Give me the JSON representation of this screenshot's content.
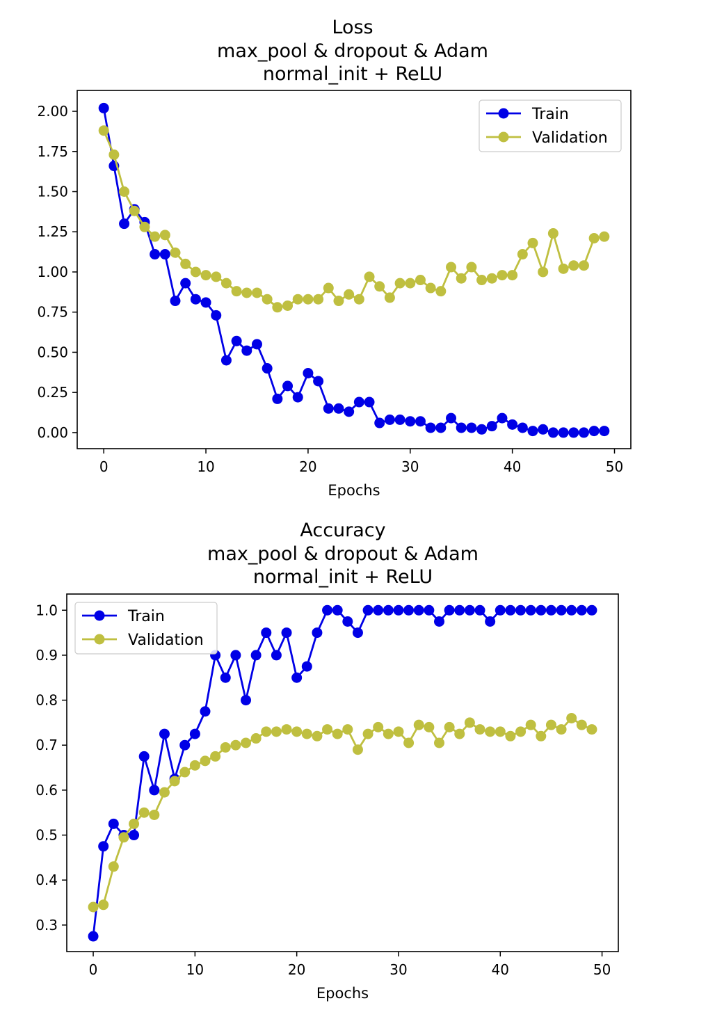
{
  "colors": {
    "train": "#0000e6",
    "validation": "#bfbf40",
    "axes": "#000000",
    "background": "#ffffff"
  },
  "chart_data": [
    {
      "type": "line",
      "title": "Loss",
      "subtitle_line1": "max_pool & dropout & Adam",
      "subtitle_line2": "normal_init + ReLU",
      "xlabel": "Epochs",
      "ylabel": "",
      "xlim": [
        -2.6,
        51.6
      ],
      "ylim": [
        -0.1,
        2.13
      ],
      "x_ticks": [
        0,
        10,
        20,
        30,
        40,
        50
      ],
      "x_tick_labels": [
        "0",
        "10",
        "20",
        "30",
        "40",
        "50"
      ],
      "y_ticks": [
        0.0,
        0.25,
        0.5,
        0.75,
        1.0,
        1.25,
        1.5,
        1.75,
        2.0
      ],
      "y_tick_labels": [
        "0.00",
        "0.25",
        "0.50",
        "0.75",
        "1.00",
        "1.25",
        "1.50",
        "1.75",
        "2.00"
      ],
      "legend_position": "top-right",
      "x": [
        0,
        1,
        2,
        3,
        4,
        5,
        6,
        7,
        8,
        9,
        10,
        11,
        12,
        13,
        14,
        15,
        16,
        17,
        18,
        19,
        20,
        21,
        22,
        23,
        24,
        25,
        26,
        27,
        28,
        29,
        30,
        31,
        32,
        33,
        34,
        35,
        36,
        37,
        38,
        39,
        40,
        41,
        42,
        43,
        44,
        45,
        46,
        47,
        48,
        49
      ],
      "series": [
        {
          "name": "Train",
          "color": "#0000e6",
          "values": [
            2.02,
            1.66,
            1.3,
            1.39,
            1.31,
            1.11,
            1.11,
            0.82,
            0.93,
            0.83,
            0.81,
            0.73,
            0.45,
            0.57,
            0.51,
            0.55,
            0.4,
            0.21,
            0.29,
            0.22,
            0.37,
            0.32,
            0.15,
            0.15,
            0.13,
            0.19,
            0.19,
            0.06,
            0.08,
            0.08,
            0.07,
            0.07,
            0.03,
            0.03,
            0.09,
            0.03,
            0.03,
            0.02,
            0.04,
            0.09,
            0.05,
            0.03,
            0.01,
            0.02,
            0.0,
            0.0,
            0.0,
            0.0,
            0.01,
            0.01
          ]
        },
        {
          "name": "Validation",
          "color": "#bfbf40",
          "values": [
            1.88,
            1.73,
            1.5,
            1.38,
            1.28,
            1.22,
            1.23,
            1.12,
            1.05,
            1.0,
            0.98,
            0.97,
            0.93,
            0.88,
            0.87,
            0.87,
            0.83,
            0.78,
            0.79,
            0.83,
            0.83,
            0.83,
            0.9,
            0.82,
            0.86,
            0.83,
            0.97,
            0.91,
            0.84,
            0.93,
            0.93,
            0.95,
            0.9,
            0.88,
            1.03,
            0.96,
            1.03,
            0.95,
            0.96,
            0.98,
            0.98,
            1.11,
            1.18,
            1.0,
            1.24,
            1.02,
            1.04,
            1.04,
            1.21,
            1.22
          ]
        }
      ]
    },
    {
      "type": "line",
      "title": "Accuracy",
      "subtitle_line1": "max_pool & dropout & Adam",
      "subtitle_line2": "normal_init + ReLU",
      "xlabel": "Epochs",
      "ylabel": "",
      "xlim": [
        -2.6,
        51.6
      ],
      "ylim": [
        0.241,
        1.036
      ],
      "x_ticks": [
        0,
        10,
        20,
        30,
        40,
        50
      ],
      "x_tick_labels": [
        "0",
        "10",
        "20",
        "30",
        "40",
        "50"
      ],
      "y_ticks": [
        0.3,
        0.4,
        0.5,
        0.6,
        0.7,
        0.8,
        0.9,
        1.0
      ],
      "y_tick_labels": [
        "0.3",
        "0.4",
        "0.5",
        "0.6",
        "0.7",
        "0.8",
        "0.9",
        "1.0"
      ],
      "legend_position": "top-left",
      "x": [
        0,
        1,
        2,
        3,
        4,
        5,
        6,
        7,
        8,
        9,
        10,
        11,
        12,
        13,
        14,
        15,
        16,
        17,
        18,
        19,
        20,
        21,
        22,
        23,
        24,
        25,
        26,
        27,
        28,
        29,
        30,
        31,
        32,
        33,
        34,
        35,
        36,
        37,
        38,
        39,
        40,
        41,
        42,
        43,
        44,
        45,
        46,
        47,
        48,
        49
      ],
      "series": [
        {
          "name": "Train",
          "color": "#0000e6",
          "values": [
            0.275,
            0.475,
            0.525,
            0.5,
            0.5,
            0.675,
            0.6,
            0.725,
            0.625,
            0.7,
            0.725,
            0.775,
            0.9,
            0.85,
            0.9,
            0.8,
            0.9,
            0.95,
            0.9,
            0.95,
            0.85,
            0.875,
            0.95,
            1.0,
            1.0,
            0.975,
            0.95,
            1.0,
            1.0,
            1.0,
            1.0,
            1.0,
            1.0,
            1.0,
            0.975,
            1.0,
            1.0,
            1.0,
            1.0,
            0.975,
            1.0,
            1.0,
            1.0,
            1.0,
            1.0,
            1.0,
            1.0,
            1.0,
            1.0,
            1.0
          ]
        },
        {
          "name": "Validation",
          "color": "#bfbf40",
          "values": [
            0.34,
            0.345,
            0.43,
            0.495,
            0.525,
            0.55,
            0.545,
            0.595,
            0.62,
            0.64,
            0.655,
            0.665,
            0.675,
            0.695,
            0.7,
            0.705,
            0.715,
            0.73,
            0.73,
            0.735,
            0.73,
            0.725,
            0.72,
            0.735,
            0.725,
            0.735,
            0.69,
            0.725,
            0.74,
            0.725,
            0.73,
            0.705,
            0.745,
            0.74,
            0.705,
            0.74,
            0.725,
            0.75,
            0.735,
            0.73,
            0.73,
            0.72,
            0.73,
            0.745,
            0.72,
            0.745,
            0.735,
            0.76,
            0.745,
            0.735
          ]
        }
      ]
    }
  ]
}
